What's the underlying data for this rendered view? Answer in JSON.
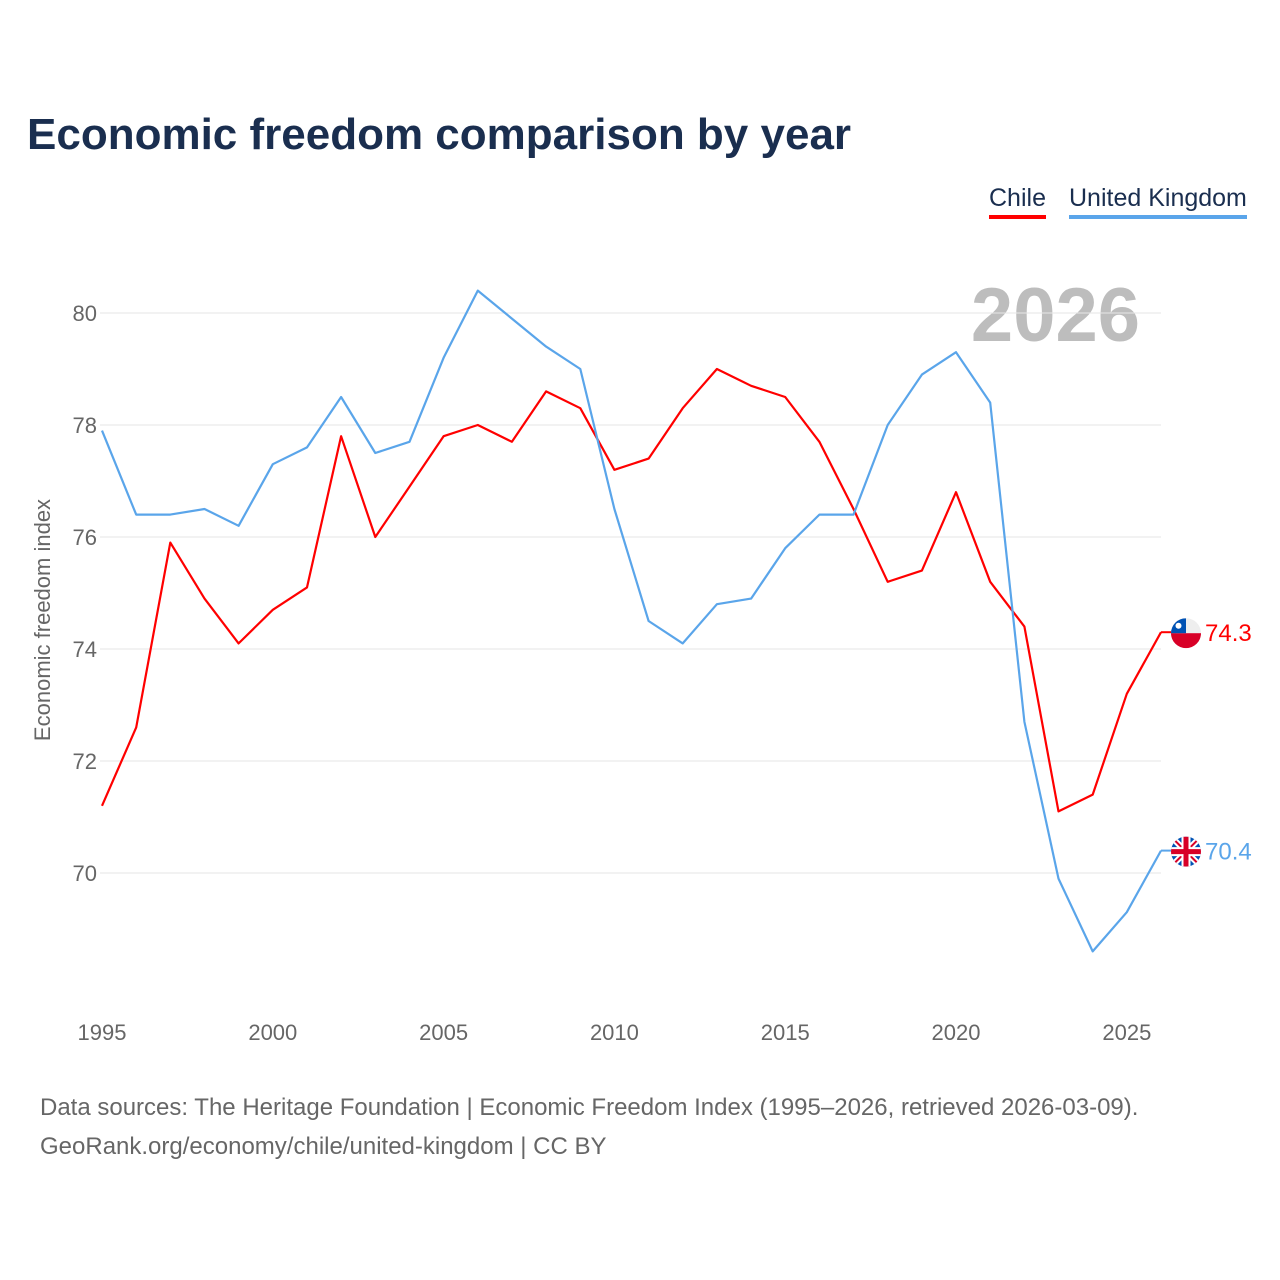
{
  "chart_data": {
    "type": "line",
    "title": "Economic freedom comparison by year",
    "ylabel": "Economic freedom index",
    "xlabel": "",
    "ylim": [
      67.9,
      81
    ],
    "xlim": [
      1995,
      2026
    ],
    "yticks": [
      70,
      72,
      74,
      76,
      78,
      80
    ],
    "xticks": [
      1995,
      2000,
      2005,
      2010,
      2015,
      2020,
      2025
    ],
    "grid": true,
    "legend_position": "top-right",
    "year_watermark": "2026",
    "x": [
      1995,
      1996,
      1997,
      1998,
      1999,
      2000,
      2001,
      2002,
      2003,
      2004,
      2005,
      2006,
      2007,
      2008,
      2009,
      2010,
      2011,
      2012,
      2013,
      2014,
      2015,
      2016,
      2017,
      2018,
      2019,
      2020,
      2021,
      2022,
      2023,
      2024,
      2025,
      2026
    ],
    "series": [
      {
        "name": "Chile",
        "color": "#ff0000",
        "flag": "chile-flag",
        "end_label": "74.3",
        "values": [
          71.2,
          72.6,
          75.9,
          74.9,
          74.1,
          74.7,
          75.1,
          77.8,
          76.0,
          76.9,
          77.8,
          78.0,
          77.7,
          78.6,
          78.3,
          77.2,
          77.4,
          78.3,
          79.0,
          78.7,
          78.5,
          77.7,
          76.5,
          75.2,
          75.4,
          76.8,
          75.2,
          74.4,
          71.1,
          71.4,
          73.2,
          74.3
        ]
      },
      {
        "name": "United Kingdom",
        "color": "#5aa5ea",
        "flag": "uk-flag",
        "end_label": "70.4",
        "values": [
          77.9,
          76.4,
          76.4,
          76.5,
          76.2,
          77.3,
          77.6,
          78.5,
          77.5,
          77.7,
          79.2,
          80.4,
          79.9,
          79.4,
          79.0,
          76.5,
          74.5,
          74.1,
          74.8,
          74.9,
          75.8,
          76.4,
          76.4,
          78.0,
          78.9,
          79.3,
          78.4,
          72.7,
          69.9,
          68.6,
          69.3,
          70.4
        ]
      }
    ]
  },
  "footer": {
    "line1": "Data sources: The Heritage Foundation | Economic Freedom Index (1995–2026, retrieved 2026-03-09).",
    "line2": "GeoRank.org/economy/chile/united-kingdom | CC BY"
  }
}
